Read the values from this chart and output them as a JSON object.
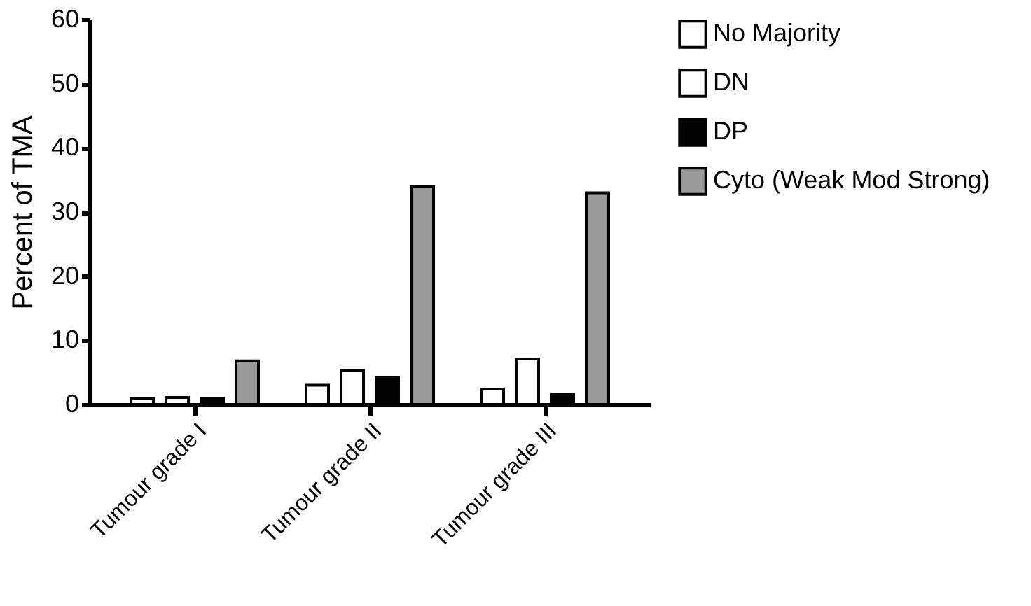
{
  "chart_data": {
    "type": "bar",
    "ylabel": "Percent of TMA",
    "categories": [
      "Tumour grade I",
      "Tumour grade II",
      "Tumour grade III"
    ],
    "series": [
      {
        "name": "No Majority",
        "color": "#ffffff",
        "values": [
          0.9,
          3.0,
          2.4
        ]
      },
      {
        "name": "DN",
        "color": "#ffffff",
        "values": [
          1.1,
          5.3,
          7.1
        ]
      },
      {
        "name": "DP",
        "color": "#000000",
        "values": [
          0.9,
          4.2,
          1.6
        ]
      },
      {
        "name": "Cyto (Weak Mod Strong)",
        "color": "#9a9a9a",
        "values": [
          6.8,
          34,
          33
        ]
      }
    ],
    "ylim": [
      0,
      60
    ],
    "yticks": [
      0,
      10,
      20,
      30,
      40,
      50,
      60
    ],
    "grid": false,
    "legend": "top right"
  }
}
